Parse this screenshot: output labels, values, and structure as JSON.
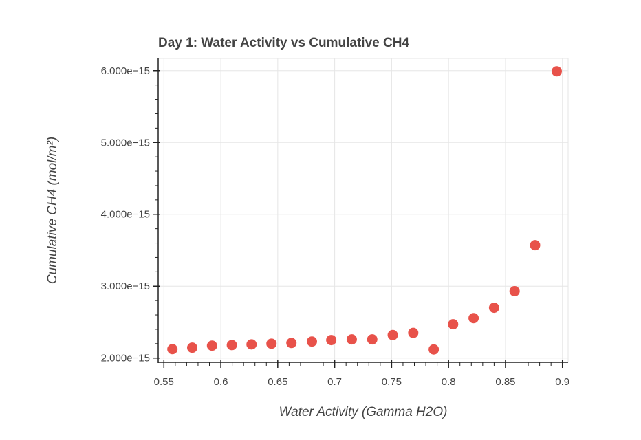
{
  "chart_data": {
    "type": "scatter",
    "title": "Day 1: Water Activity vs Cumulative CH4",
    "xlabel": "Water Activity (Gamma H2O)",
    "ylabel": "Cumulative CH4 (mol/m²)",
    "xlim": [
      0.545,
      0.905
    ],
    "ylim": [
      1.94e-15,
      6.17e-15
    ],
    "xticks": [
      0.55,
      0.6,
      0.65,
      0.7,
      0.75,
      0.8,
      0.85,
      0.9
    ],
    "xtick_labels": [
      "0.55",
      "0.6",
      "0.65",
      "0.7",
      "0.75",
      "0.8",
      "0.85",
      "0.9"
    ],
    "yticks": [
      2e-15,
      3e-15,
      4e-15,
      5e-15,
      6e-15
    ],
    "ytick_labels": [
      "2.000e−15",
      "3.000e−15",
      "4.000e−15",
      "5.000e−15",
      "6.000e−15"
    ],
    "grid": true,
    "marker_color": "#e8524a",
    "x": [
      0.5575,
      0.5749,
      0.5923,
      0.6097,
      0.627,
      0.6445,
      0.662,
      0.68,
      0.697,
      0.715,
      0.733,
      0.751,
      0.769,
      0.787,
      0.804,
      0.822,
      0.84,
      0.858,
      0.876,
      0.895
    ],
    "y": [
      2.124e-15,
      2.144e-15,
      2.172e-15,
      2.18e-15,
      2.19e-15,
      2.2e-15,
      2.21e-15,
      2.23e-15,
      2.25e-15,
      2.26e-15,
      2.26e-15,
      2.32e-15,
      2.35e-15,
      2.12e-15,
      2.47e-15,
      2.555e-15,
      2.7e-15,
      2.93e-15,
      3.57e-15,
      5.99e-15
    ]
  }
}
